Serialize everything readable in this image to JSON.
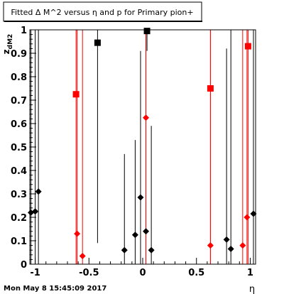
{
  "chart_data": {
    "type": "scatter",
    "title": "Fitted Δ M^2 versus η and p for Primary pion+",
    "xlabel": "η",
    "ylabel": "z_{dM2}",
    "xlim": [
      -1.05,
      1.05
    ],
    "ylim": [
      0,
      1
    ],
    "x_ticks": [
      "-1",
      "-0.5",
      "0",
      "0.5",
      "1"
    ],
    "y_ticks": [
      "0",
      "0.1",
      "0.2",
      "0.3",
      "0.4",
      "0.5",
      "0.6",
      "0.7",
      "0.8",
      "0.9",
      "1"
    ],
    "grid": false,
    "series": [
      {
        "color": "#000000",
        "marker": "diamond",
        "points": [
          {
            "x": -1.04,
            "y": 0.22,
            "err": [
              0.0,
              1.0
            ]
          },
          {
            "x": -1.0,
            "y": 0.225,
            "err": [
              0.0,
              1.0
            ]
          },
          {
            "x": -0.97,
            "y": 0.31,
            "err": [
              0.0,
              1.0
            ]
          },
          {
            "x": -0.17,
            "y": 0.06,
            "err": [
              0.0,
              0.47
            ]
          },
          {
            "x": -0.07,
            "y": 0.125,
            "err": [
              0.0,
              0.53
            ]
          },
          {
            "x": -0.02,
            "y": 0.285,
            "err": [
              0.0,
              0.91
            ]
          },
          {
            "x": 0.03,
            "y": 0.14,
            "err": [
              0.0,
              1.0
            ]
          },
          {
            "x": 0.08,
            "y": 0.06,
            "err": [
              0.0,
              0.59
            ]
          },
          {
            "x": 0.78,
            "y": 0.105,
            "err": [
              0.0,
              0.92
            ]
          },
          {
            "x": 0.82,
            "y": 0.065,
            "err": [
              0.0,
              1.0
            ]
          },
          {
            "x": 1.03,
            "y": 0.215,
            "err": [
              0.0,
              1.0
            ]
          }
        ]
      },
      {
        "color": "#000000",
        "marker": "square",
        "points": [
          {
            "x": -0.42,
            "y": 0.945,
            "err": [
              0.09,
              1.0
            ]
          },
          {
            "x": 0.04,
            "y": 0.995,
            "err": [
              0.91,
              1.0
            ]
          }
        ]
      },
      {
        "color": "#ff0000",
        "marker": "diamond",
        "points": [
          {
            "x": -0.61,
            "y": 0.13,
            "err": [
              0.0,
              1.0
            ]
          },
          {
            "x": -0.56,
            "y": 0.035,
            "err": [
              0.0,
              1.0
            ]
          },
          {
            "x": 0.03,
            "y": 0.625,
            "err": [
              0.0,
              1.0
            ]
          },
          {
            "x": 0.63,
            "y": 0.08,
            "err": [
              0.0,
              1.0
            ]
          },
          {
            "x": 0.93,
            "y": 0.08,
            "err": [
              0.0,
              1.0
            ]
          },
          {
            "x": 0.97,
            "y": 0.2,
            "err": [
              0.0,
              1.0
            ]
          }
        ]
      },
      {
        "color": "#ff0000",
        "marker": "square",
        "points": [
          {
            "x": -0.62,
            "y": 0.725,
            "err": [
              0.0,
              1.0
            ]
          },
          {
            "x": 0.63,
            "y": 0.75,
            "err": [
              0.0,
              1.0
            ]
          },
          {
            "x": 0.98,
            "y": 0.93,
            "err": [
              0.0,
              1.0
            ]
          }
        ]
      }
    ]
  },
  "footer": {
    "timestamp": "Mon May  8 15:45:09 2017"
  }
}
